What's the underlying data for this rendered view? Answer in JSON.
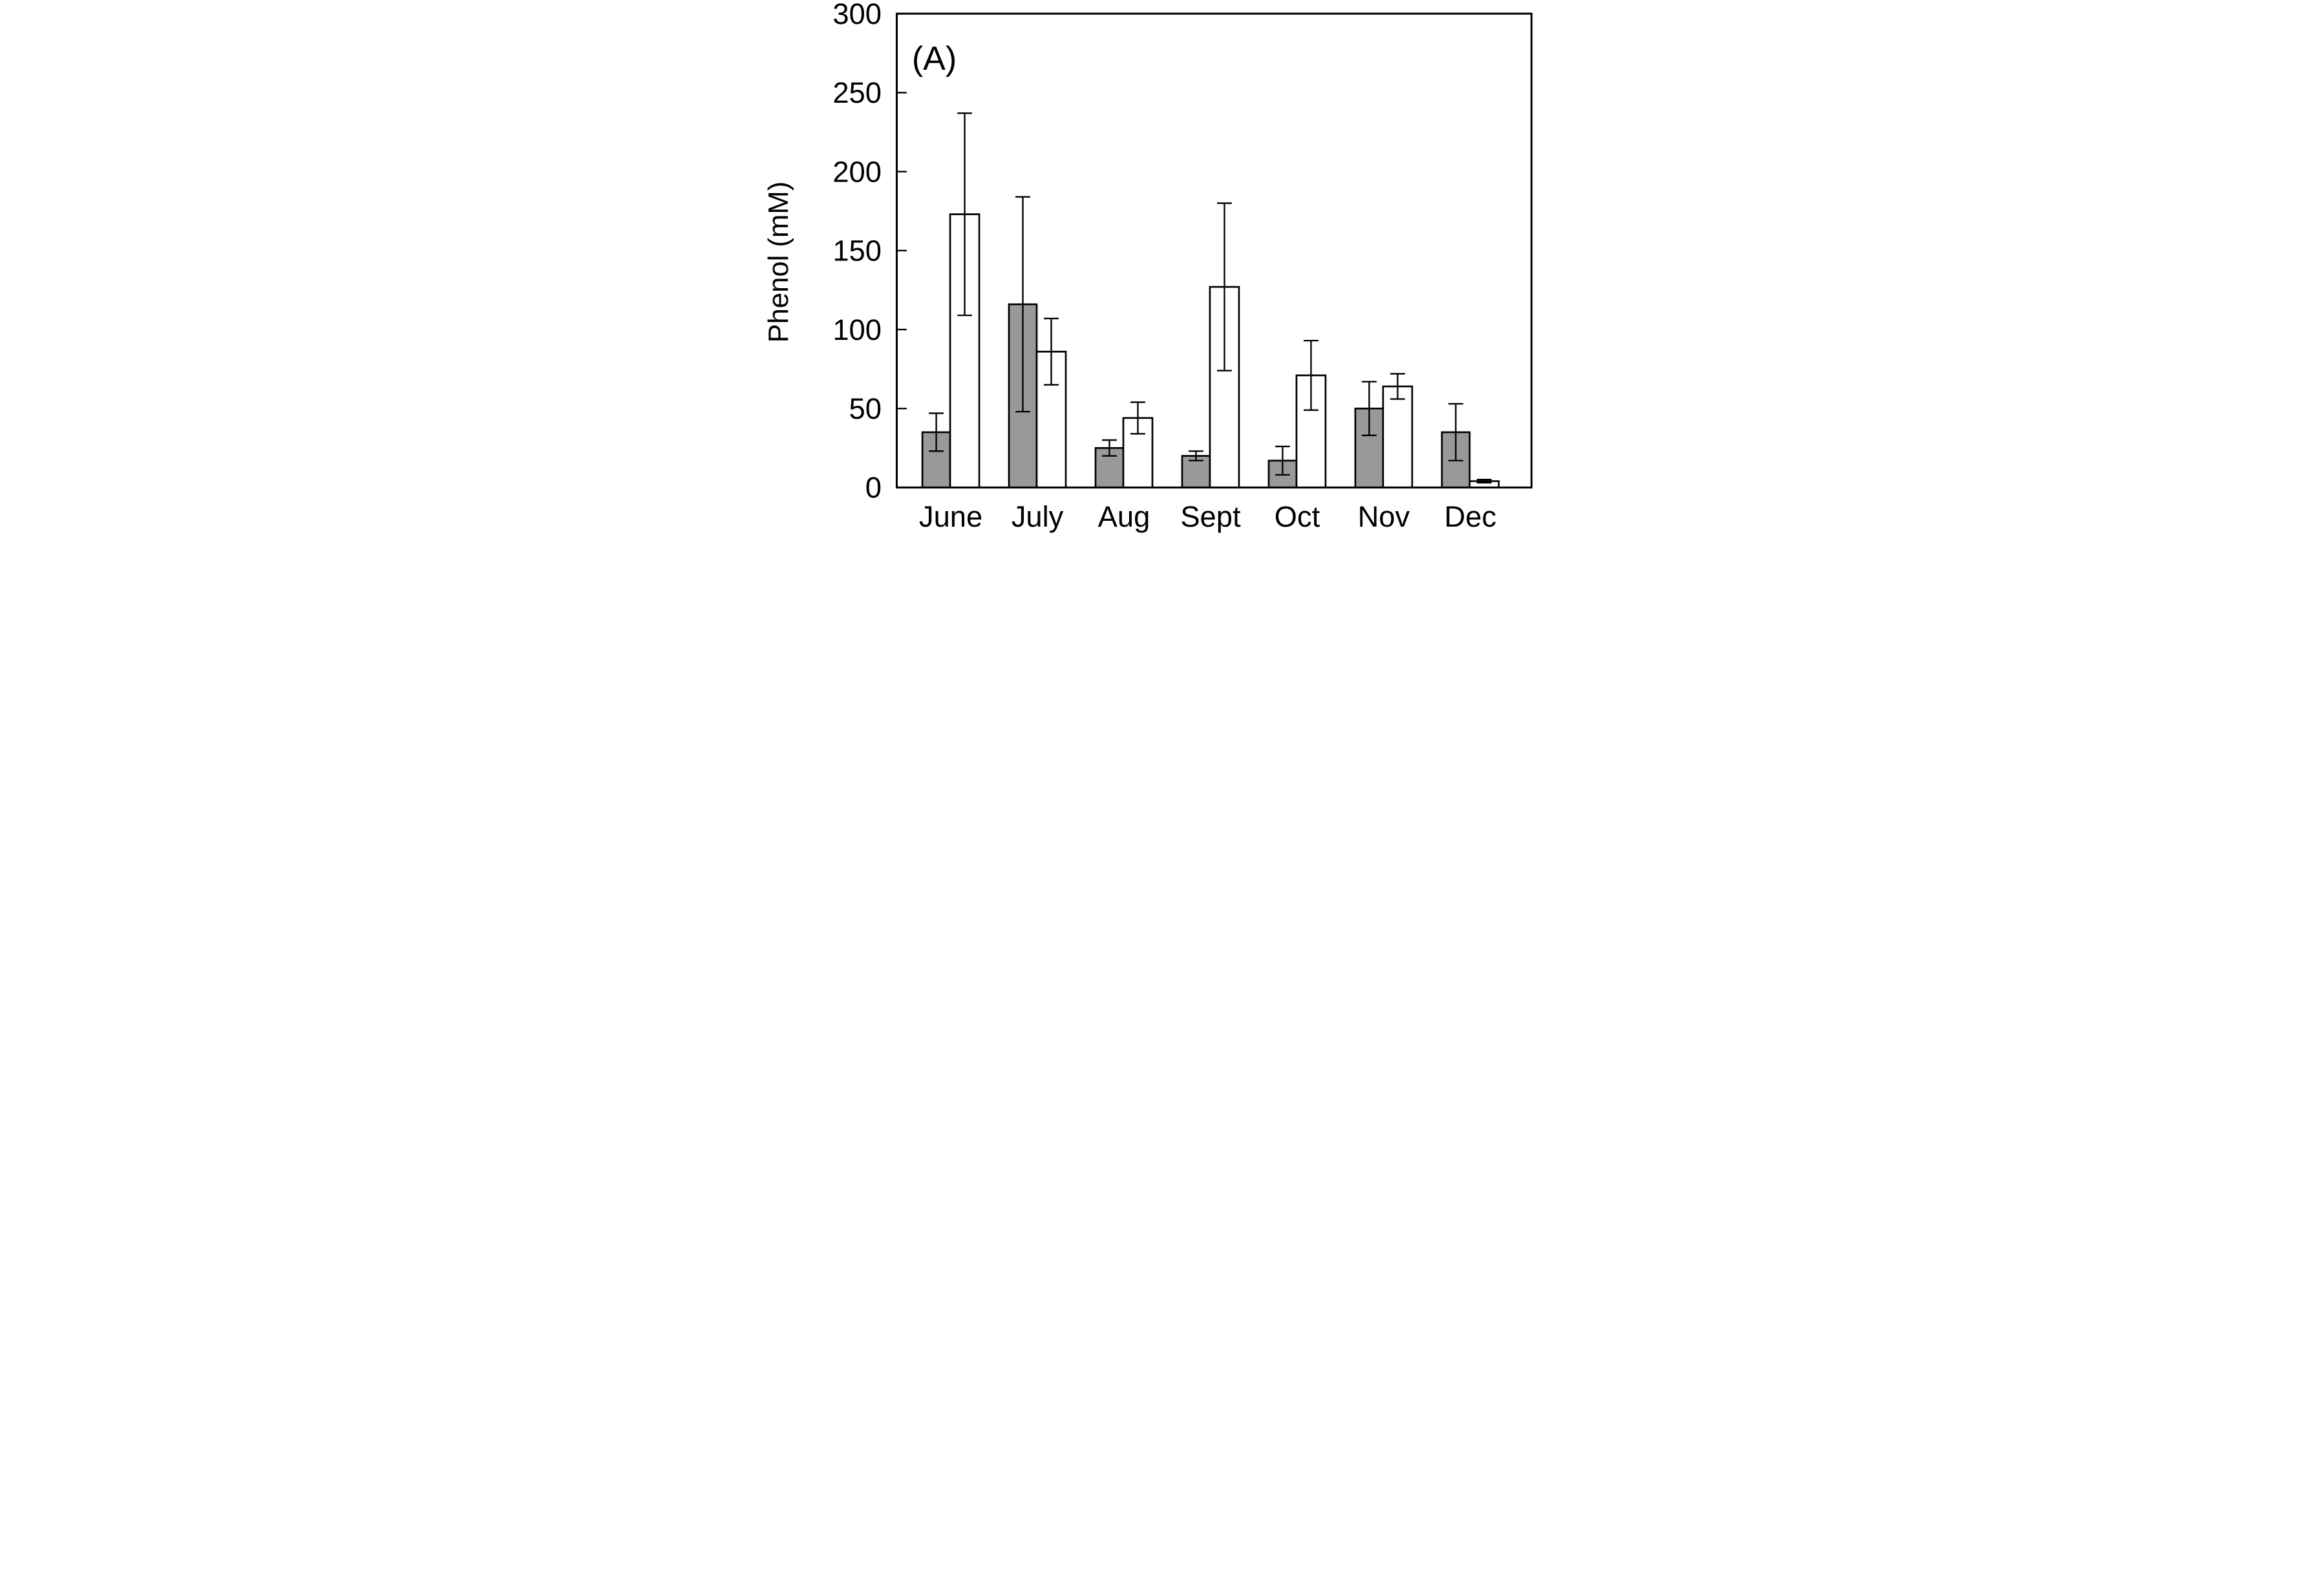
{
  "figure": {
    "panel_label": "(A)",
    "y_axis_title": "Phenol  (mM)"
  },
  "chart_data": {
    "type": "bar",
    "title": "",
    "panel_label": "(A)",
    "xlabel": "",
    "ylabel": "Phenol  (mM)",
    "categories": [
      "June",
      "July",
      "Aug",
      "Sept",
      "Oct",
      "Nov",
      "Dec"
    ],
    "series": [
      {
        "name": "gray-bars",
        "fill": "#999999",
        "values": [
          35,
          116,
          25,
          20,
          17,
          50,
          35
        ],
        "errors": [
          12,
          68,
          5,
          3,
          9,
          17,
          18
        ]
      },
      {
        "name": "white-bars",
        "fill": "#ffffff",
        "values": [
          173,
          86,
          44,
          127,
          71,
          64,
          4
        ],
        "errors": [
          64,
          21,
          10,
          53,
          22,
          8,
          1
        ]
      }
    ],
    "error_bars": true,
    "ylim": [
      0,
      300
    ],
    "yticks": [
      0,
      50,
      100,
      150,
      200,
      250,
      300
    ],
    "grid": false,
    "legend": "none",
    "bar_edge_color": "#000000",
    "axis_color": "#000000",
    "background": "#ffffff"
  }
}
